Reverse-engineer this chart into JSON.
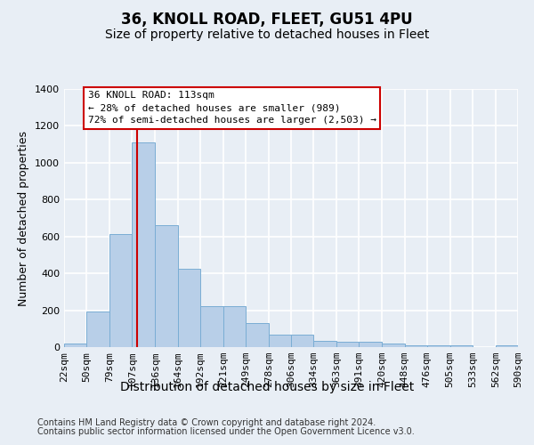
{
  "title1": "36, KNOLL ROAD, FLEET, GU51 4PU",
  "title2": "Size of property relative to detached houses in Fleet",
  "xlabel": "Distribution of detached houses by size in Fleet",
  "ylabel": "Number of detached properties",
  "footer1": "Contains HM Land Registry data © Crown copyright and database right 2024.",
  "footer2": "Contains public sector information licensed under the Open Government Licence v3.0.",
  "annotation_line1": "36 KNOLL ROAD: 113sqm",
  "annotation_line2": "← 28% of detached houses are smaller (989)",
  "annotation_line3": "72% of semi-detached houses are larger (2,503) →",
  "bar_color": "#b8cfe8",
  "bar_edge_color": "#7aadd4",
  "red_line_x": 113,
  "bin_edges": [
    22,
    50,
    79,
    107,
    136,
    164,
    192,
    221,
    249,
    278,
    306,
    334,
    363,
    391,
    420,
    448,
    476,
    505,
    533,
    562,
    590
  ],
  "bar_values": [
    20,
    195,
    615,
    1110,
    660,
    425,
    220,
    220,
    130,
    70,
    70,
    35,
    30,
    28,
    18,
    12,
    12,
    8,
    0,
    12
  ],
  "ylim": [
    0,
    1400
  ],
  "yticks": [
    0,
    200,
    400,
    600,
    800,
    1000,
    1200,
    1400
  ],
  "bg_color": "#e8eef5",
  "plot_bg_color": "#e8eef5",
  "grid_color": "#ffffff",
  "annotation_box_facecolor": "#ffffff",
  "annotation_box_edgecolor": "#cc0000",
  "red_line_color": "#cc0000",
  "title1_fontsize": 12,
  "title2_fontsize": 10,
  "xlabel_fontsize": 10,
  "ylabel_fontsize": 9,
  "tick_fontsize": 8,
  "annotation_fontsize": 8,
  "footer_fontsize": 7
}
